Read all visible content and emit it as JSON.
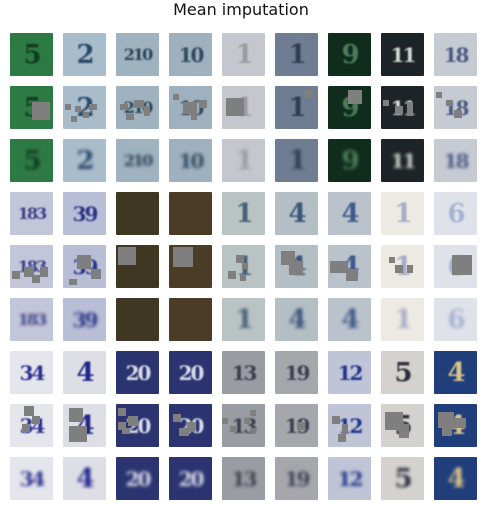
{
  "title": "Mean imputation",
  "colors": {
    "patch": "#7f7f7f"
  },
  "rows": [
    [
      {
        "glyph": "5",
        "bg": "#2e7a45",
        "fg": "#0f3d22"
      },
      {
        "glyph": "2",
        "bg": "#a9bccb",
        "fg": "#2b4a6a"
      },
      {
        "glyph": "210",
        "bg": "#9fb2bf",
        "fg": "#2a4458"
      },
      {
        "glyph": "10",
        "bg": "#9fb0bf",
        "fg": "#2f4a60"
      },
      {
        "glyph": "1",
        "bg": "#c5c7cf",
        "fg": "#9a9aa5"
      },
      {
        "glyph": "1",
        "bg": "#6e7d92",
        "fg": "#2f3d52"
      },
      {
        "glyph": "9",
        "bg": "#0f2c1c",
        "fg": "#4c7b58"
      },
      {
        "glyph": "11",
        "bg": "#1d2428",
        "fg": "#d6d8d2"
      },
      {
        "glyph": "18",
        "bg": "#c6cad3",
        "fg": "#4a5a82"
      }
    ],
    [
      {
        "glyph": "5",
        "bg": "#2e7a45",
        "fg": "#0f3d22"
      },
      {
        "glyph": "2",
        "bg": "#a9bccb",
        "fg": "#2b4a6a"
      },
      {
        "glyph": "210",
        "bg": "#9fb2bf",
        "fg": "#2a4458"
      },
      {
        "glyph": "10",
        "bg": "#9fb0bf",
        "fg": "#2f4a60"
      },
      {
        "glyph": "1",
        "bg": "#c5c7cf",
        "fg": "#9a9aa5"
      },
      {
        "glyph": "1",
        "bg": "#6e7d92",
        "fg": "#2f3d52"
      },
      {
        "glyph": "9",
        "bg": "#0f2c1c",
        "fg": "#4c7b58"
      },
      {
        "glyph": "11",
        "bg": "#1d2428",
        "fg": "#d6d8d2"
      },
      {
        "glyph": "18",
        "bg": "#c6cad3",
        "fg": "#4a5a82"
      }
    ],
    [
      {
        "glyph": "5",
        "bg": "#2e7a45",
        "fg": "#0f3d22"
      },
      {
        "glyph": "2",
        "bg": "#a9bccb",
        "fg": "#2b4a6a"
      },
      {
        "glyph": "210",
        "bg": "#9fb2bf",
        "fg": "#2a4458"
      },
      {
        "glyph": "10",
        "bg": "#9fb0bf",
        "fg": "#2f4a60"
      },
      {
        "glyph": "1",
        "bg": "#c5c7cf",
        "fg": "#9a9aa5"
      },
      {
        "glyph": "1",
        "bg": "#6e7d92",
        "fg": "#2f3d52"
      },
      {
        "glyph": "9",
        "bg": "#0f2c1c",
        "fg": "#4c7b58"
      },
      {
        "glyph": "11",
        "bg": "#1d2428",
        "fg": "#d6d8d2"
      },
      {
        "glyph": "18",
        "bg": "#c6cad3",
        "fg": "#4a5a82"
      }
    ],
    [
      {
        "glyph": "183",
        "bg": "#c3c6d8",
        "fg": "#3c3e8a"
      },
      {
        "glyph": "39",
        "bg": "#b8bed6",
        "fg": "#2c3586"
      },
      {
        "glyph": "",
        "bg": "#3f3722",
        "fg": "#8c7a44"
      },
      {
        "glyph": "",
        "bg": "#4a3c26",
        "fg": "#8b6d3e"
      },
      {
        "glyph": "1",
        "bg": "#b9c3c3",
        "fg": "#48607a"
      },
      {
        "glyph": "4",
        "bg": "#b3bec5",
        "fg": "#3d557a"
      },
      {
        "glyph": "4",
        "bg": "#bac2cc",
        "fg": "#3f5a8a"
      },
      {
        "glyph": "1",
        "bg": "#eceae2",
        "fg": "#a9abc7"
      },
      {
        "glyph": "6",
        "bg": "#e0e2ea",
        "fg": "#a8b2d2"
      }
    ],
    [
      {
        "glyph": "183",
        "bg": "#c3c6d8",
        "fg": "#3c3e8a"
      },
      {
        "glyph": "39",
        "bg": "#b8bed6",
        "fg": "#2c3586"
      },
      {
        "glyph": "",
        "bg": "#3f3722",
        "fg": "#8c7a44"
      },
      {
        "glyph": "",
        "bg": "#4a3c26",
        "fg": "#8b6d3e"
      },
      {
        "glyph": "1",
        "bg": "#b9c3c3",
        "fg": "#48607a"
      },
      {
        "glyph": "4",
        "bg": "#b3bec5",
        "fg": "#3d557a"
      },
      {
        "glyph": "4",
        "bg": "#bac2cc",
        "fg": "#3f5a8a"
      },
      {
        "glyph": "1",
        "bg": "#eceae2",
        "fg": "#a9abc7"
      },
      {
        "glyph": "6",
        "bg": "#e0e2ea",
        "fg": "#a8b2d2"
      }
    ],
    [
      {
        "glyph": "183",
        "bg": "#c3c6d8",
        "fg": "#3c3e8a"
      },
      {
        "glyph": "39",
        "bg": "#b8bed6",
        "fg": "#2c3586"
      },
      {
        "glyph": "",
        "bg": "#3f3722",
        "fg": "#8c7a44"
      },
      {
        "glyph": "",
        "bg": "#4a3c26",
        "fg": "#8b6d3e"
      },
      {
        "glyph": "1",
        "bg": "#b9c3c3",
        "fg": "#48607a"
      },
      {
        "glyph": "4",
        "bg": "#b3bec5",
        "fg": "#3d557a"
      },
      {
        "glyph": "4",
        "bg": "#bac2cc",
        "fg": "#3f5a8a"
      },
      {
        "glyph": "1",
        "bg": "#eceae2",
        "fg": "#a9abc7"
      },
      {
        "glyph": "6",
        "bg": "#e0e2ea",
        "fg": "#a8b2d2"
      }
    ],
    [
      {
        "glyph": "34",
        "bg": "#e5e6ec",
        "fg": "#2b2f8e"
      },
      {
        "glyph": "4",
        "bg": "#dedfe6",
        "fg": "#20268a"
      },
      {
        "glyph": "20",
        "bg": "#2b3470",
        "fg": "#d9dceb"
      },
      {
        "glyph": "20",
        "bg": "#2b3470",
        "fg": "#d9dceb"
      },
      {
        "glyph": "13",
        "bg": "#9a9ca4",
        "fg": "#3d3f4a"
      },
      {
        "glyph": "19",
        "bg": "#a5a7ad",
        "fg": "#3f4150"
      },
      {
        "glyph": "12",
        "bg": "#bfc5d6",
        "fg": "#22338a"
      },
      {
        "glyph": "5",
        "bg": "#d3d2cf",
        "fg": "#2e2e3e"
      },
      {
        "glyph": "4",
        "bg": "#1f3e7b",
        "fg": "#d9c28a"
      }
    ],
    [
      {
        "glyph": "34",
        "bg": "#e5e6ec",
        "fg": "#2b2f8e"
      },
      {
        "glyph": "4",
        "bg": "#dedfe6",
        "fg": "#20268a"
      },
      {
        "glyph": "20",
        "bg": "#2b3470",
        "fg": "#d9dceb"
      },
      {
        "glyph": "20",
        "bg": "#2b3470",
        "fg": "#d9dceb"
      },
      {
        "glyph": "13",
        "bg": "#9a9ca4",
        "fg": "#3d3f4a"
      },
      {
        "glyph": "19",
        "bg": "#a5a7ad",
        "fg": "#3f4150"
      },
      {
        "glyph": "12",
        "bg": "#bfc5d6",
        "fg": "#22338a"
      },
      {
        "glyph": "5",
        "bg": "#d3d2cf",
        "fg": "#2e2e3e"
      },
      {
        "glyph": "4",
        "bg": "#1f3e7b",
        "fg": "#d9c28a"
      }
    ],
    [
      {
        "glyph": "34",
        "bg": "#e5e6ec",
        "fg": "#2b2f8e"
      },
      {
        "glyph": "4",
        "bg": "#dedfe6",
        "fg": "#20268a"
      },
      {
        "glyph": "20",
        "bg": "#2b3470",
        "fg": "#d9dceb"
      },
      {
        "glyph": "20",
        "bg": "#2b3470",
        "fg": "#d9dceb"
      },
      {
        "glyph": "13",
        "bg": "#9a9ca4",
        "fg": "#3d3f4a"
      },
      {
        "glyph": "19",
        "bg": "#a5a7ad",
        "fg": "#3f4150"
      },
      {
        "glyph": "12",
        "bg": "#bfc5d6",
        "fg": "#22338a"
      },
      {
        "glyph": "5",
        "bg": "#d3d2cf",
        "fg": "#2e2e3e"
      },
      {
        "glyph": "4",
        "bg": "#1f3e7b",
        "fg": "#d9c28a"
      }
    ]
  ]
}
